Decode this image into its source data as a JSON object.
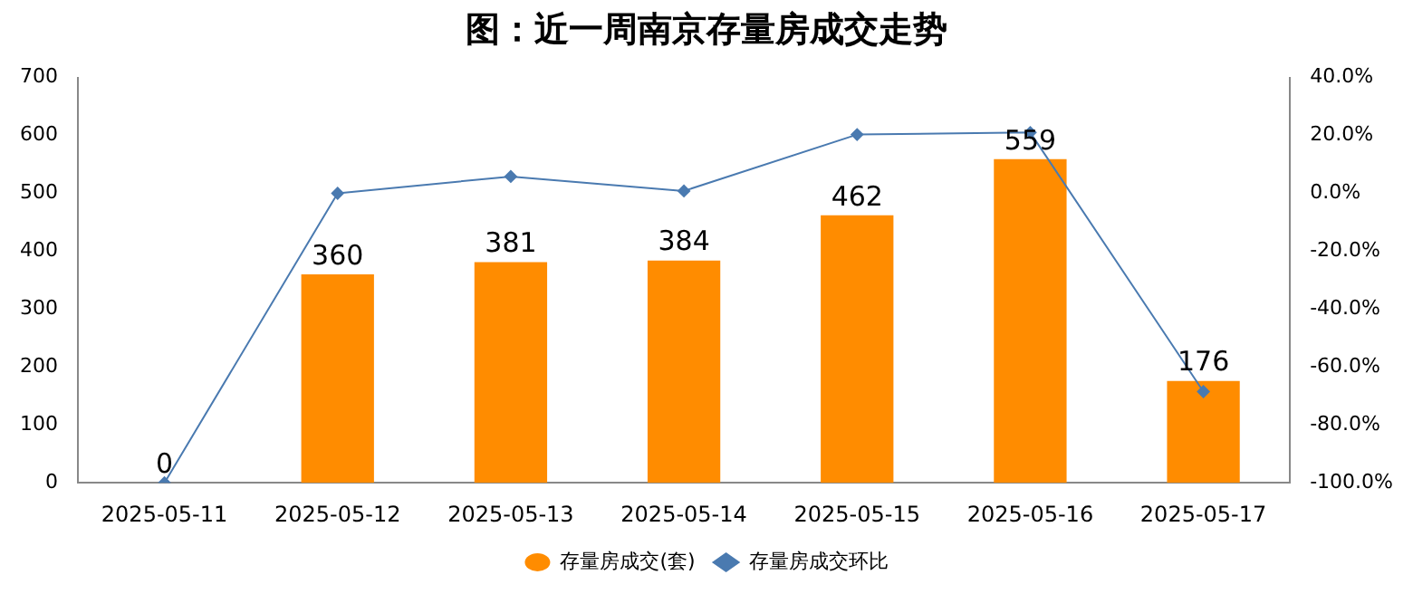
{
  "chart_data": {
    "type": "bar",
    "title": "图：近一周南京存量房成交走势",
    "categories": [
      "2025-05-11",
      "2025-05-12",
      "2025-05-13",
      "2025-05-14",
      "2025-05-15",
      "2025-05-16",
      "2025-05-17"
    ],
    "series": [
      {
        "name": "存量房成交(套)",
        "color": "#ff8c00",
        "values": [
          0,
          360,
          381,
          384,
          462,
          559,
          176
        ],
        "value_labels": [
          "0",
          "360",
          "381",
          "384",
          "462",
          "559",
          "176"
        ]
      },
      {
        "name": "存量房成交环比",
        "type": "line",
        "axis": "y2",
        "color": "#4a7ab0",
        "marker": "diamond",
        "values": [
          -100,
          0,
          5.8,
          0.8,
          20.3,
          21.0,
          -68.5
        ]
      }
    ],
    "ylim": [
      0,
      700
    ],
    "yticks": [
      0,
      100,
      200,
      300,
      400,
      500,
      600,
      700
    ],
    "y2lim": [
      -100,
      40
    ],
    "y2ticks": [
      {
        "value": -100,
        "label": "-100.0%"
      },
      {
        "value": -80,
        "label": "-80.0%"
      },
      {
        "value": -60,
        "label": "-60.0%"
      },
      {
        "value": -40,
        "label": "-40.0%"
      },
      {
        "value": -20,
        "label": "-20.0%"
      },
      {
        "value": 0,
        "label": "0.0%"
      },
      {
        "value": 20,
        "label": "20.0%"
      },
      {
        "value": 40,
        "label": "40.0%"
      }
    ],
    "grid": false,
    "legend": "bottom"
  }
}
